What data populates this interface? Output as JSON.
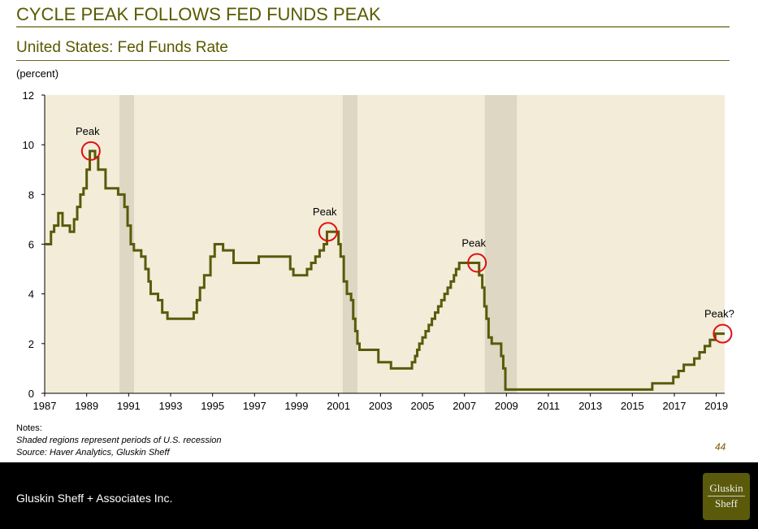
{
  "title": "CYCLE PEAK FOLLOWS FED FUNDS PEAK",
  "chart_data": {
    "type": "line",
    "title": "United States: Fed Funds Rate",
    "ylabel": "(percent)",
    "xlabel": "",
    "ylim": [
      0,
      12
    ],
    "xlim": [
      1987,
      2019.4
    ],
    "yticks": [
      "0",
      "2",
      "4",
      "6",
      "8",
      "10",
      "12"
    ],
    "xticks": [
      "1987",
      "1989",
      "1991",
      "1993",
      "1995",
      "1997",
      "1999",
      "2001",
      "2003",
      "2005",
      "2007",
      "2009",
      "2011",
      "2013",
      "2015",
      "2017",
      "2019"
    ],
    "recessions": [
      [
        1990.56,
        1991.26
      ],
      [
        2001.2,
        2001.9
      ],
      [
        2007.97,
        2009.5
      ]
    ],
    "series": [
      {
        "name": "Fed Funds Rate",
        "color": "#5a5a0a",
        "step": true,
        "points": [
          [
            1987.0,
            6.0
          ],
          [
            1987.3,
            6.5
          ],
          [
            1987.45,
            6.75
          ],
          [
            1987.65,
            7.25
          ],
          [
            1987.85,
            6.75
          ],
          [
            1988.2,
            6.5
          ],
          [
            1988.4,
            7.0
          ],
          [
            1988.55,
            7.5
          ],
          [
            1988.7,
            8.0
          ],
          [
            1988.85,
            8.25
          ],
          [
            1989.0,
            9.0
          ],
          [
            1989.15,
            9.75
          ],
          [
            1989.4,
            9.5
          ],
          [
            1989.55,
            9.0
          ],
          [
            1989.9,
            8.25
          ],
          [
            1990.5,
            8.0
          ],
          [
            1990.8,
            7.5
          ],
          [
            1990.95,
            6.75
          ],
          [
            1991.1,
            6.0
          ],
          [
            1991.25,
            5.75
          ],
          [
            1991.6,
            5.5
          ],
          [
            1991.8,
            5.0
          ],
          [
            1991.95,
            4.5
          ],
          [
            1992.05,
            4.0
          ],
          [
            1992.4,
            3.75
          ],
          [
            1992.6,
            3.25
          ],
          [
            1992.85,
            3.0
          ],
          [
            1994.1,
            3.25
          ],
          [
            1994.25,
            3.75
          ],
          [
            1994.4,
            4.25
          ],
          [
            1994.6,
            4.75
          ],
          [
            1994.9,
            5.5
          ],
          [
            1995.1,
            6.0
          ],
          [
            1995.5,
            5.75
          ],
          [
            1996.0,
            5.25
          ],
          [
            1997.2,
            5.5
          ],
          [
            1998.7,
            5.0
          ],
          [
            1998.85,
            4.75
          ],
          [
            1999.5,
            5.0
          ],
          [
            1999.7,
            5.25
          ],
          [
            1999.9,
            5.5
          ],
          [
            2000.1,
            5.75
          ],
          [
            2000.3,
            6.0
          ],
          [
            2000.45,
            6.5
          ],
          [
            2001.0,
            6.0
          ],
          [
            2001.1,
            5.5
          ],
          [
            2001.25,
            4.5
          ],
          [
            2001.4,
            4.0
          ],
          [
            2001.6,
            3.75
          ],
          [
            2001.7,
            3.0
          ],
          [
            2001.8,
            2.5
          ],
          [
            2001.9,
            2.0
          ],
          [
            2002.0,
            1.75
          ],
          [
            2002.9,
            1.25
          ],
          [
            2003.5,
            1.0
          ],
          [
            2004.5,
            1.25
          ],
          [
            2004.65,
            1.5
          ],
          [
            2004.75,
            1.75
          ],
          [
            2004.85,
            2.0
          ],
          [
            2005.0,
            2.25
          ],
          [
            2005.15,
            2.5
          ],
          [
            2005.3,
            2.75
          ],
          [
            2005.45,
            3.0
          ],
          [
            2005.6,
            3.25
          ],
          [
            2005.75,
            3.5
          ],
          [
            2005.9,
            3.75
          ],
          [
            2006.05,
            4.0
          ],
          [
            2006.2,
            4.25
          ],
          [
            2006.35,
            4.5
          ],
          [
            2006.5,
            4.75
          ],
          [
            2006.6,
            5.0
          ],
          [
            2006.75,
            5.25
          ],
          [
            2007.7,
            4.75
          ],
          [
            2007.85,
            4.25
          ],
          [
            2007.95,
            3.5
          ],
          [
            2008.05,
            3.0
          ],
          [
            2008.15,
            2.25
          ],
          [
            2008.3,
            2.0
          ],
          [
            2008.75,
            1.5
          ],
          [
            2008.85,
            1.0
          ],
          [
            2008.95,
            0.15
          ],
          [
            2015.95,
            0.4
          ],
          [
            2016.95,
            0.66
          ],
          [
            2017.2,
            0.9
          ],
          [
            2017.45,
            1.15
          ],
          [
            2017.95,
            1.4
          ],
          [
            2018.2,
            1.65
          ],
          [
            2018.45,
            1.9
          ],
          [
            2018.7,
            2.15
          ],
          [
            2018.95,
            2.4
          ],
          [
            2019.4,
            2.4
          ]
        ]
      }
    ],
    "annotations": [
      {
        "text": "Peak",
        "x": 1989.2,
        "y": 9.75
      },
      {
        "text": "Peak",
        "x": 2000.5,
        "y": 6.5
      },
      {
        "text": "Peak",
        "x": 2007.6,
        "y": 5.25
      },
      {
        "text": "Peak?",
        "x": 2019.3,
        "y": 2.4
      }
    ]
  },
  "notes": {
    "heading": "Notes:",
    "line1": "Shaded regions represent periods of U.S. recession",
    "line2": "Source: Haver Analytics, Gluskin Sheff"
  },
  "page_number": "44",
  "footer": {
    "company": "Gluskin Sheff + Associates Inc.",
    "logo_line1": "Gluskin",
    "logo_line2": "Sheff"
  }
}
